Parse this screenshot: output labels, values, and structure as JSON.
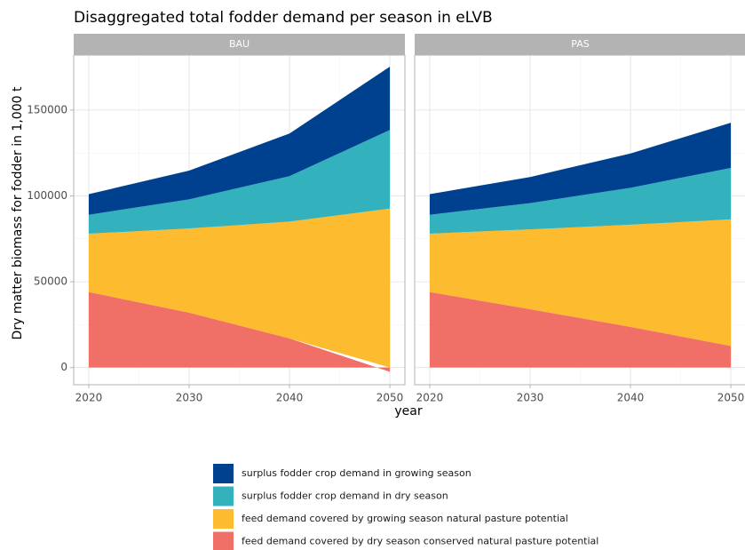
{
  "chart_data": {
    "type": "area",
    "title": "Disaggregated total fodder demand per season in eLVB",
    "x_label": "year",
    "y_label": "Dry matter biomass for fodder in 1,000 t",
    "x": [
      2020,
      2030,
      2040,
      2050
    ],
    "xlim": [
      2018.5,
      2051.5
    ],
    "xticks": [
      2020,
      2030,
      2040,
      2050
    ],
    "ylim": [
      -10000,
      182000
    ],
    "yticks": [
      0,
      50000,
      100000,
      150000
    ],
    "grid": true,
    "series": [
      {
        "name": "feed demand covered by dry season conserved natural pasture potential",
        "color": "#f07068"
      },
      {
        "name": "feed demand covered by growing season natural pasture potential",
        "color": "#fdbb2f"
      },
      {
        "name": "surplus fodder crop demand in dry season",
        "color": "#33b2bd"
      },
      {
        "name": "surplus fodder crop demand in growing season",
        "color": "#00418f"
      }
    ],
    "facets": [
      {
        "label": "BAU",
        "series": [
          {
            "values": [
              44000,
              32000,
              17000,
              -2500
            ]
          },
          {
            "values": [
              34000,
              49000,
              68000,
              92600
            ]
          },
          {
            "values": [
              11000,
              17000,
              26500,
              45800
            ]
          },
          {
            "values": [
              12000,
              16700,
              24800,
              36900
            ]
          }
        ]
      },
      {
        "label": "PAS",
        "series": [
          {
            "values": [
              44000,
              34000,
              23700,
              12600
            ]
          },
          {
            "values": [
              34000,
              46500,
              59500,
              73700
            ]
          },
          {
            "values": [
              11000,
              15300,
              21500,
              30000
            ]
          },
          {
            "values": [
              12000,
              15200,
              20000,
              26300
            ]
          }
        ]
      }
    ]
  }
}
